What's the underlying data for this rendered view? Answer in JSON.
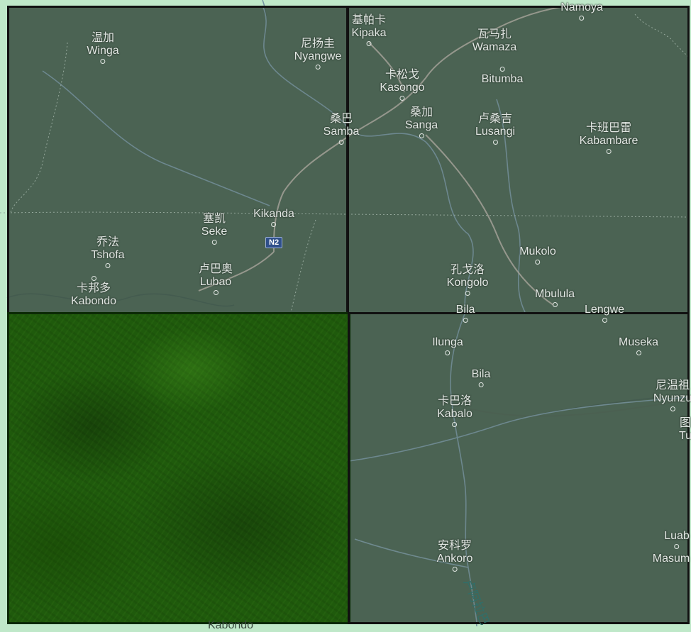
{
  "map": {
    "places": [
      {
        "id": "namoya",
        "zh": "",
        "name": "Namoya"
      },
      {
        "id": "kipaka",
        "zh": "基帕卡",
        "name": "Kipaka"
      },
      {
        "id": "winga",
        "zh": "温加",
        "name": "Winga"
      },
      {
        "id": "nyangwe",
        "zh": "尼扬圭",
        "name": "Nyangwe"
      },
      {
        "id": "wamaza",
        "zh": "瓦马扎",
        "name": "Wamaza"
      },
      {
        "id": "bitumba",
        "zh": "",
        "name": "Bitumba"
      },
      {
        "id": "kasongo",
        "zh": "卡松戈",
        "name": "Kasongo"
      },
      {
        "id": "samba",
        "zh": "桑巴",
        "name": "Samba"
      },
      {
        "id": "sanga",
        "zh": "桑加",
        "name": "Sanga"
      },
      {
        "id": "lusangi",
        "zh": "卢桑吉",
        "name": "Lusangi"
      },
      {
        "id": "kabambare",
        "zh": "卡班巴雷",
        "name": "Kabambare"
      },
      {
        "id": "kikanda",
        "zh": "",
        "name": "Kikanda"
      },
      {
        "id": "seke",
        "zh": "塞凯",
        "name": "Seke"
      },
      {
        "id": "tshofa",
        "zh": "乔法",
        "name": "Tshofa"
      },
      {
        "id": "lubao",
        "zh": "卢巴奥",
        "name": "Lubao"
      },
      {
        "id": "kabondo",
        "zh": "卡邦多",
        "name": "Kabondo"
      },
      {
        "id": "mukolo",
        "zh": "",
        "name": "Mukolo"
      },
      {
        "id": "kongolo",
        "zh": "孔戈洛",
        "name": "Kongolo"
      },
      {
        "id": "mbulula",
        "zh": "",
        "name": "Mbulula"
      },
      {
        "id": "bila_top",
        "zh": "",
        "name": "Bila"
      },
      {
        "id": "lengwe",
        "zh": "",
        "name": "Lengwe"
      },
      {
        "id": "ilunga",
        "zh": "",
        "name": "Ilunga"
      },
      {
        "id": "museka",
        "zh": "",
        "name": "Museka"
      },
      {
        "id": "bila",
        "zh": "",
        "name": "Bila"
      },
      {
        "id": "kabalo",
        "zh": "卡巴洛",
        "name": "Kabalo"
      },
      {
        "id": "nyunzu",
        "zh": "尼温祖",
        "name": "Nyunzu"
      },
      {
        "id": "tu",
        "zh": "图",
        "name": "Tu"
      },
      {
        "id": "ankoro",
        "zh": "安科罗",
        "name": "Ankoro"
      },
      {
        "id": "luab",
        "zh": "",
        "name": "Luab"
      },
      {
        "id": "masum",
        "zh": "",
        "name": "Masum"
      },
      {
        "id": "kabondo_bottom",
        "zh": "",
        "name": "Kabondo"
      }
    ],
    "road_shield": "N2",
    "river_label": "卢阿拉巴"
  }
}
